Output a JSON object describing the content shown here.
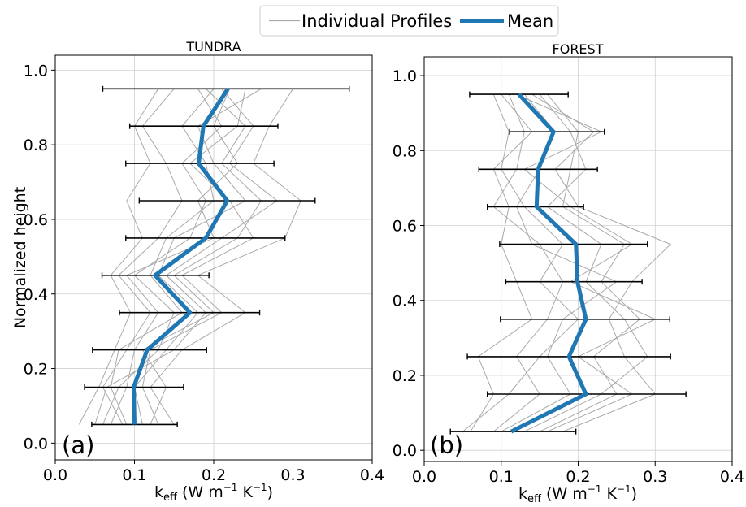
{
  "legend": {
    "individual_label": "Individual Profiles",
    "mean_label": "Mean"
  },
  "colors": {
    "mean": "#1f77b4",
    "individual": "#a9a9a9",
    "errorbar": "#000000",
    "grid": "#d0d0d0"
  },
  "chart_data": [
    {
      "type": "line",
      "title": "TUNDRA",
      "panel_label": "(a)",
      "xlabel": "k",
      "xlabel_sub": "eff",
      "xlabel_units": "W m",
      "ylabel": "Normalized height",
      "xlim": [
        0.0,
        0.4
      ],
      "ylim": [
        -0.045,
        1.04
      ],
      "xticks": [
        "0.0",
        "0.1",
        "0.2",
        "0.3",
        "0.4"
      ],
      "yticks": [
        "0.0",
        "0.2",
        "0.4",
        "0.6",
        "0.8",
        "1.0"
      ],
      "grid": true,
      "mean": {
        "name": "Mean",
        "y": [
          0.05,
          0.15,
          0.25,
          0.35,
          0.45,
          0.55,
          0.65,
          0.75,
          0.85,
          0.95
        ],
        "x": [
          0.1,
          0.099,
          0.116,
          0.17,
          0.126,
          0.19,
          0.217,
          0.181,
          0.187,
          0.218
        ],
        "xerr_low": [
          0.046,
          0.037,
          0.047,
          0.081,
          0.059,
          0.089,
          0.106,
          0.089,
          0.094,
          0.06
        ],
        "xerr_high": [
          0.154,
          0.162,
          0.191,
          0.258,
          0.194,
          0.29,
          0.328,
          0.276,
          0.281,
          0.371
        ]
      },
      "profiles": [
        [
          0.085,
          0.06,
          0.09,
          0.12,
          0.08,
          0.13,
          0.16,
          0.14,
          0.11,
          0.15
        ],
        [
          0.12,
          0.14,
          0.11,
          0.2,
          0.15,
          0.23,
          0.26,
          0.21,
          0.24,
          0.19
        ],
        [
          0.03,
          0.055,
          0.075,
          0.095,
          0.07,
          0.11,
          0.09,
          0.12,
          0.1,
          0.13
        ],
        [
          0.15,
          0.12,
          0.16,
          0.24,
          0.18,
          0.29,
          0.31,
          0.25,
          0.27,
          0.3
        ],
        [
          0.06,
          0.08,
          0.13,
          0.15,
          0.1,
          0.17,
          0.19,
          0.16,
          0.21,
          0.18
        ],
        [
          0.11,
          0.1,
          0.14,
          0.18,
          0.13,
          0.15,
          0.24,
          0.2,
          0.18,
          0.26
        ],
        [
          0.07,
          0.09,
          0.1,
          0.13,
          0.09,
          0.2,
          0.18,
          0.23,
          0.2,
          0.22
        ],
        [
          0.13,
          0.11,
          0.12,
          0.21,
          0.16,
          0.25,
          0.22,
          0.17,
          0.23,
          0.24
        ],
        [
          0.09,
          0.07,
          0.08,
          0.16,
          0.12,
          0.14,
          0.2,
          0.19,
          0.16,
          0.2
        ],
        [
          0.05,
          0.065,
          0.15,
          0.19,
          0.14,
          0.21,
          0.28,
          0.22,
          0.25,
          0.21
        ]
      ]
    },
    {
      "type": "line",
      "title": "FOREST",
      "panel_label": "(b)",
      "xlabel": "k",
      "xlabel_sub": "eff",
      "xlabel_units": "W m",
      "ylabel": "",
      "xlim": [
        0.0,
        0.4
      ],
      "ylim": [
        -0.03,
        1.05
      ],
      "xticks": [
        "0.0",
        "0.1",
        "0.2",
        "0.3",
        "0.4"
      ],
      "yticks": [
        "0.0",
        "0.2",
        "0.4",
        "0.6",
        "0.8",
        "1.0"
      ],
      "grid": true,
      "mean": {
        "name": "Mean",
        "y": [
          0.05,
          0.15,
          0.25,
          0.35,
          0.45,
          0.55,
          0.65,
          0.75,
          0.85,
          0.95
        ],
        "x": [
          0.113,
          0.21,
          0.188,
          0.21,
          0.199,
          0.197,
          0.146,
          0.148,
          0.168,
          0.123
        ],
        "xerr_low": [
          0.034,
          0.082,
          0.056,
          0.099,
          0.106,
          0.098,
          0.082,
          0.071,
          0.111,
          0.059
        ],
        "xerr_high": [
          0.197,
          0.34,
          0.32,
          0.319,
          0.283,
          0.29,
          0.207,
          0.225,
          0.234,
          0.187
        ]
      },
      "profiles": [
        [
          0.06,
          0.09,
          0.07,
          0.14,
          0.12,
          0.1,
          0.11,
          0.09,
          0.14,
          0.1
        ],
        [
          0.15,
          0.25,
          0.22,
          0.28,
          0.23,
          0.26,
          0.18,
          0.19,
          0.2,
          0.16
        ],
        [
          0.09,
          0.15,
          0.12,
          0.16,
          0.18,
          0.15,
          0.09,
          0.12,
          0.13,
          0.11
        ],
        [
          0.18,
          0.3,
          0.26,
          0.24,
          0.27,
          0.32,
          0.2,
          0.17,
          0.22,
          0.14
        ],
        [
          0.05,
          0.11,
          0.15,
          0.2,
          0.15,
          0.18,
          0.13,
          0.1,
          0.11,
          0.09
        ],
        [
          0.13,
          0.23,
          0.29,
          0.26,
          0.21,
          0.23,
          0.16,
          0.21,
          0.19,
          0.15
        ],
        [
          0.1,
          0.19,
          0.16,
          0.18,
          0.25,
          0.14,
          0.12,
          0.15,
          0.17,
          0.13
        ],
        [
          0.16,
          0.27,
          0.2,
          0.3,
          0.19,
          0.27,
          0.19,
          0.13,
          0.23,
          0.12
        ]
      ]
    }
  ]
}
